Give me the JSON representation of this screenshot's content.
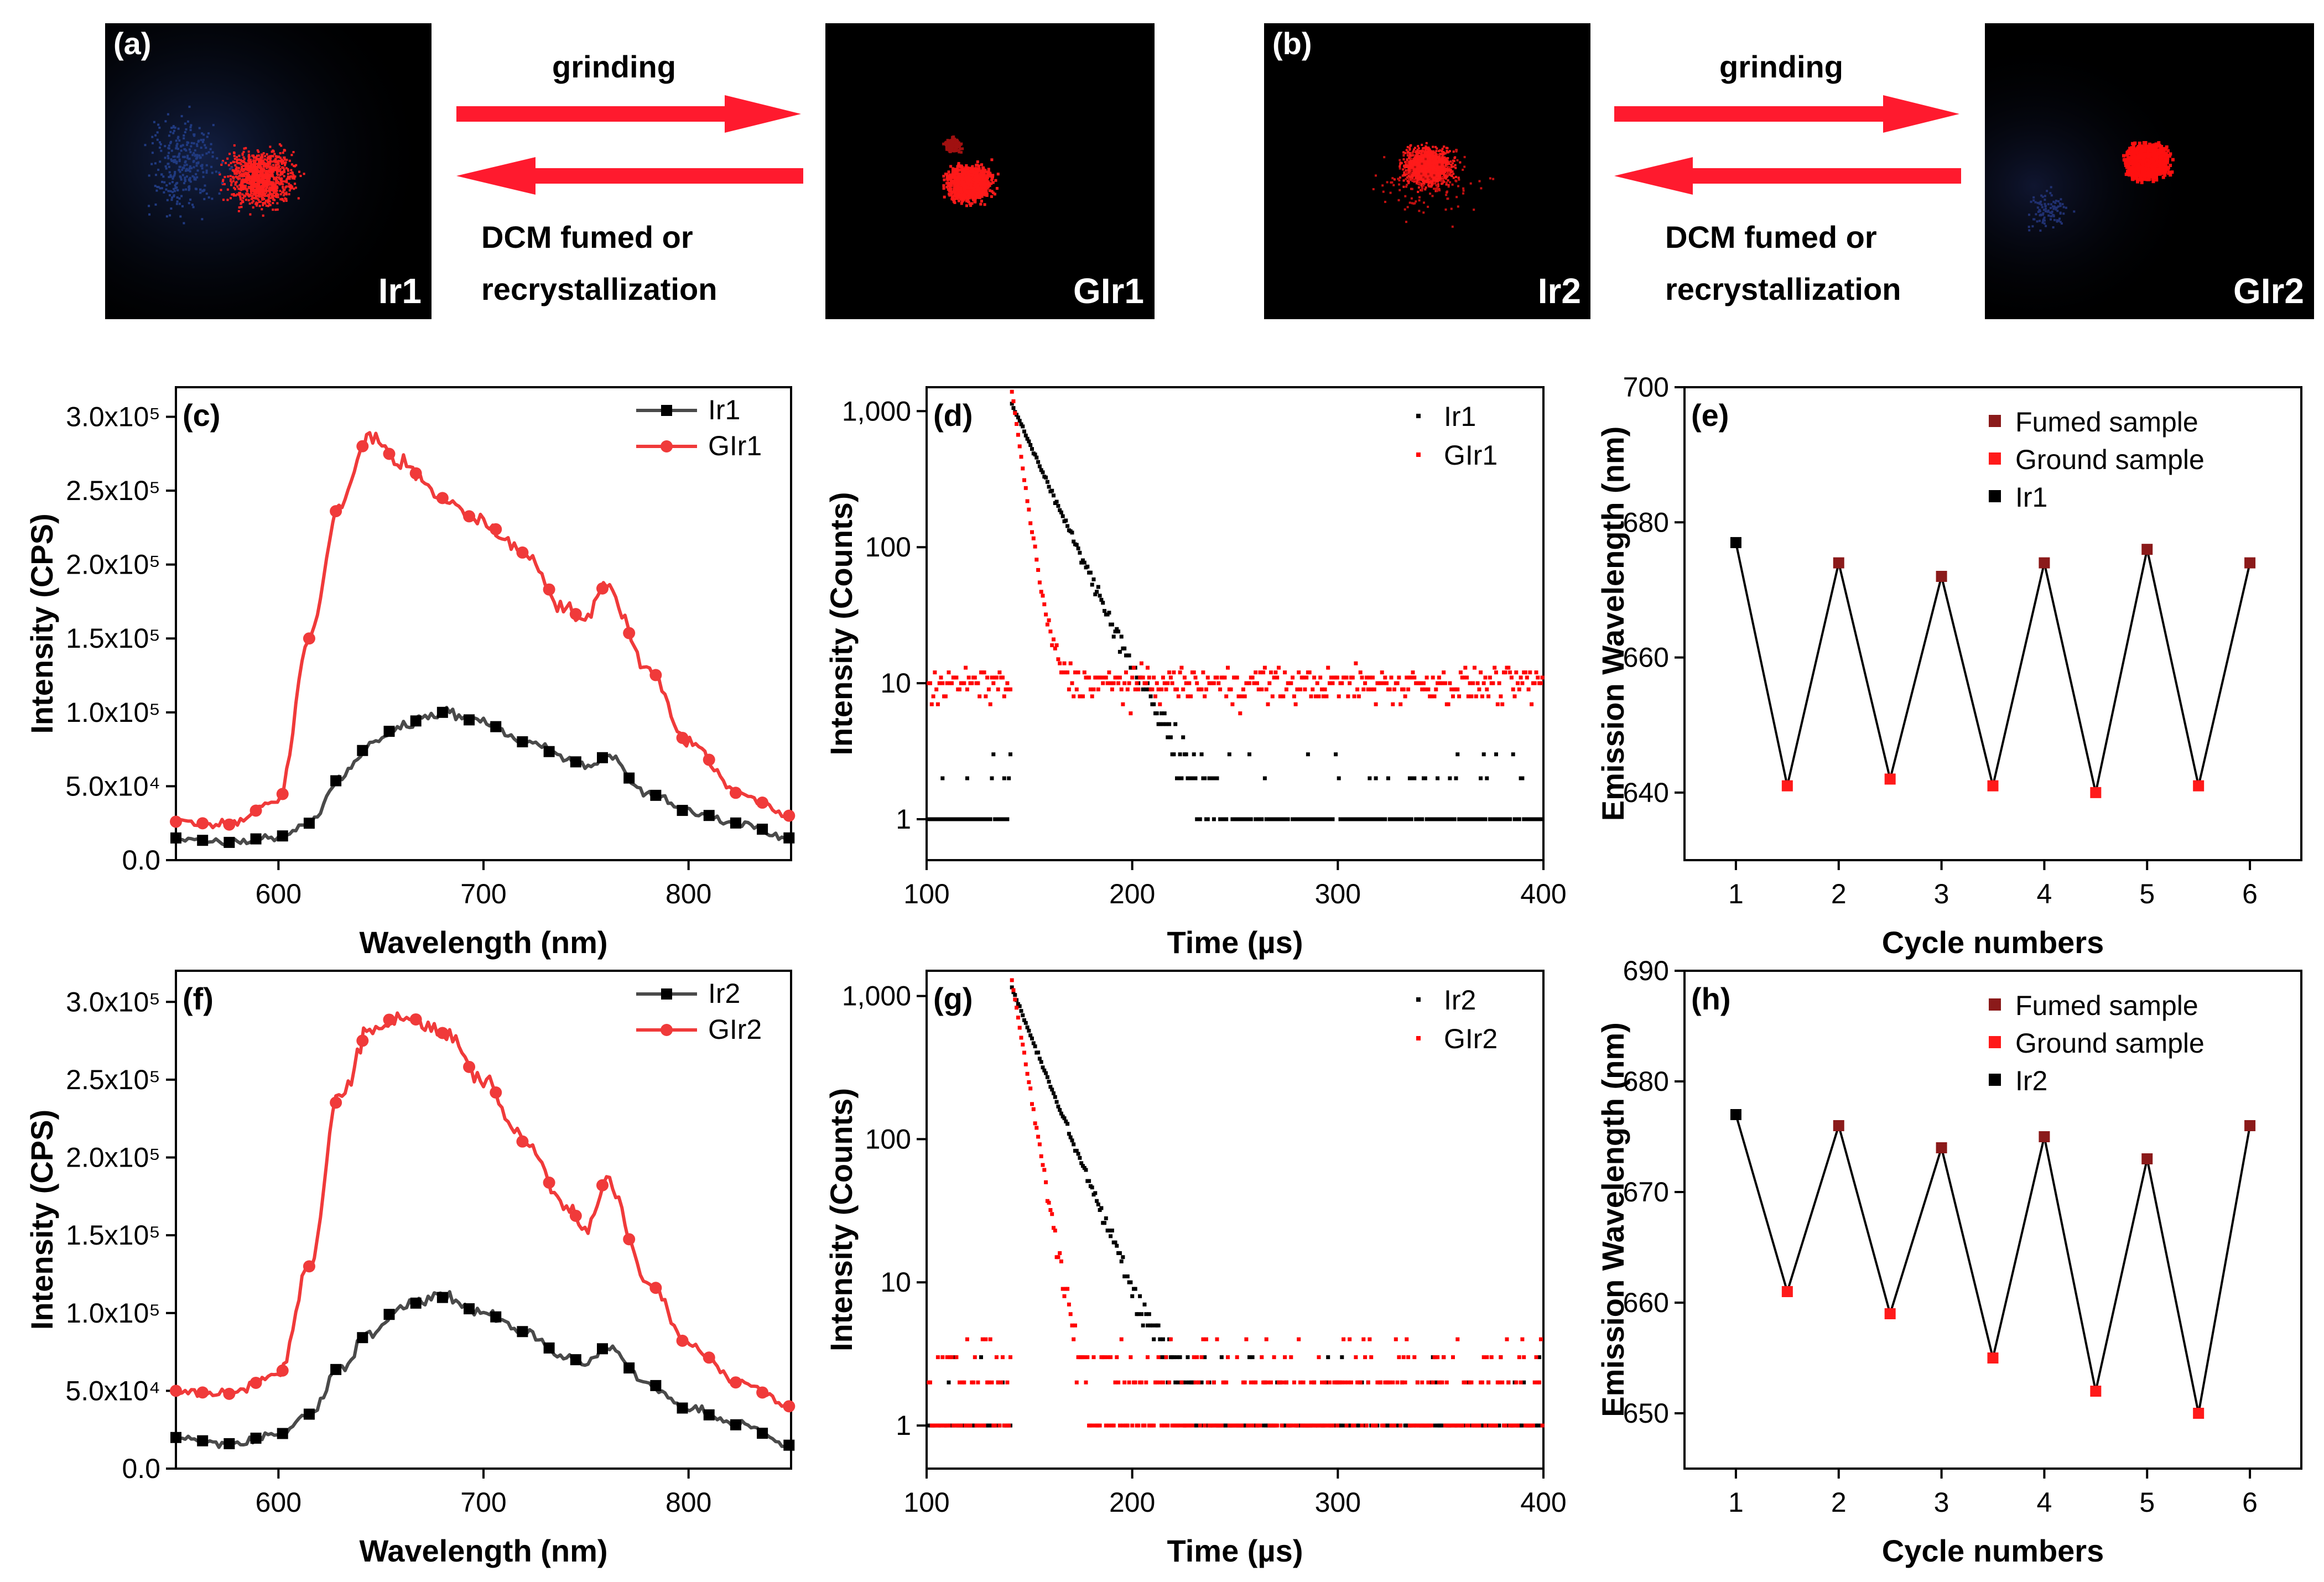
{
  "photos": {
    "a_label": "(a)",
    "b_label": "(b)",
    "a_left": "Ir1",
    "a_right": "GIr1",
    "b_left": "Ir2",
    "b_right": "GIr2",
    "arrow_top": "grinding",
    "arrow_bottom_1": "DCM fumed or",
    "arrow_bottom_2": "recrystallization"
  },
  "colors": {
    "black_series": "#4a4a4a",
    "red_series": "#f03a3a",
    "decay_black": "#000000",
    "decay_red": "#ff0000",
    "fumed": "#8b1a1a",
    "ground": "#ff1a1a",
    "arrow": "#ff1a2e"
  },
  "chart_data": [
    {
      "id": "c",
      "panel_label": "(c)",
      "type": "line",
      "xlabel": "Wavelength (nm)",
      "ylabel": "Intensity (CPS)",
      "xlim": [
        550,
        850
      ],
      "ylim": [
        0,
        320000
      ],
      "xticks": [
        600,
        700,
        800
      ],
      "xtick_labels": [
        "600",
        "700",
        "800"
      ],
      "yticks": [
        0,
        50000,
        100000,
        150000,
        200000,
        250000,
        300000
      ],
      "ytick_labels": [
        "0.0",
        "5.0x10⁴",
        "1.0x10⁵",
        "1.5x10⁵",
        "2.0x10⁵",
        "2.5x10⁵",
        "3.0x10⁵"
      ],
      "x": [
        550,
        575,
        600,
        615,
        630,
        645,
        660,
        680,
        700,
        720,
        740,
        750,
        760,
        780,
        800,
        825,
        850
      ],
      "series": [
        {
          "name": "Ir1",
          "color": "#4a4a4a",
          "marker": "square",
          "values": [
            15000,
            12000,
            16000,
            25000,
            55000,
            78000,
            92000,
            100000,
            93000,
            80000,
            70000,
            63000,
            70000,
            45000,
            33000,
            25000,
            15000
          ]
        },
        {
          "name": "GIr1",
          "color": "#f03a3a",
          "marker": "circle",
          "values": [
            26000,
            24000,
            40000,
            150000,
            240000,
            288000,
            268000,
            245000,
            228000,
            208000,
            170000,
            163000,
            186000,
            130000,
            80000,
            45000,
            30000
          ]
        }
      ],
      "legend": [
        {
          "label": "Ir1"
        },
        {
          "label": "GIr1"
        }
      ]
    },
    {
      "id": "d",
      "panel_label": "(d)",
      "type": "scatter",
      "xlabel": "Time (µs)",
      "ylabel": "Intensity (Counts)",
      "xlim": [
        100,
        400
      ],
      "ylim": [
        0.5,
        1500
      ],
      "yscale": "log",
      "xticks": [
        100,
        200,
        300,
        400
      ],
      "xtick_labels": [
        "100",
        "200",
        "300",
        "400"
      ],
      "yticks": [
        1,
        10,
        100,
        1000
      ],
      "ytick_labels": [
        "1",
        "10",
        "100",
        "1,000"
      ],
      "series": [
        {
          "name": "Ir1",
          "color": "#000000",
          "peak_time": 143,
          "peak": 1000,
          "decay_tau": 13,
          "floor": 1
        },
        {
          "name": "GIr1",
          "color": "#ff0000",
          "peak_time": 143,
          "peak": 950,
          "decay_tau": 4,
          "floor": 10
        }
      ],
      "legend": [
        {
          "label": "Ir1"
        },
        {
          "label": "GIr1"
        }
      ]
    },
    {
      "id": "e",
      "panel_label": "(e)",
      "type": "line",
      "xlabel": "Cycle numbers",
      "ylabel": "Emission Wavelength (nm)",
      "xlim": [
        0.5,
        6.5
      ],
      "ylim": [
        630,
        700
      ],
      "xticks": [
        1,
        2,
        3,
        4,
        5,
        6
      ],
      "xtick_labels": [
        "1",
        "2",
        "3",
        "4",
        "5",
        "6"
      ],
      "yticks": [
        640,
        660,
        680,
        700
      ],
      "ytick_labels": [
        "640",
        "660",
        "680",
        "700"
      ],
      "x": [
        1,
        1.5,
        2,
        2.5,
        3,
        3.5,
        4,
        4.5,
        5,
        5.5,
        6
      ],
      "values": [
        677,
        641,
        674,
        642,
        672,
        641,
        674,
        640,
        676,
        641,
        674
      ],
      "point_types": [
        "initial",
        "ground",
        "fumed",
        "ground",
        "fumed",
        "ground",
        "fumed",
        "ground",
        "fumed",
        "ground",
        "fumed"
      ],
      "legend": [
        {
          "label": "Fumed sample"
        },
        {
          "label": "Ground sample"
        },
        {
          "label": "Ir1"
        }
      ]
    },
    {
      "id": "f",
      "panel_label": "(f)",
      "type": "line",
      "xlabel": "Wavelength (nm)",
      "ylabel": "Intensity (CPS)",
      "xlim": [
        550,
        850
      ],
      "ylim": [
        0,
        320000
      ],
      "xticks": [
        600,
        700,
        800
      ],
      "xtick_labels": [
        "600",
        "700",
        "800"
      ],
      "yticks": [
        0,
        50000,
        100000,
        150000,
        200000,
        250000,
        300000
      ],
      "ytick_labels": [
        "0.0",
        "5.0x10⁴",
        "1.0x10⁵",
        "1.5x10⁵",
        "2.0x10⁵",
        "2.5x10⁵",
        "3.0x10⁵"
      ],
      "x": [
        550,
        575,
        600,
        615,
        630,
        645,
        660,
        680,
        700,
        720,
        740,
        750,
        760,
        780,
        800,
        825,
        850
      ],
      "series": [
        {
          "name": "Ir2",
          "color": "#4a4a4a",
          "marker": "square",
          "values": [
            20000,
            16000,
            22000,
            35000,
            65000,
            88000,
            105000,
            110000,
            100000,
            88000,
            72000,
            68000,
            78000,
            55000,
            38000,
            28000,
            15000
          ]
        },
        {
          "name": "GIr2",
          "color": "#f03a3a",
          "marker": "circle",
          "values": [
            50000,
            48000,
            60000,
            130000,
            240000,
            282000,
            292000,
            280000,
            250000,
            210000,
            170000,
            155000,
            185000,
            120000,
            80000,
            55000,
            40000
          ]
        }
      ],
      "legend": [
        {
          "label": "Ir2"
        },
        {
          "label": "GIr2"
        }
      ]
    },
    {
      "id": "g",
      "panel_label": "(g)",
      "type": "scatter",
      "xlabel": "Time (µs)",
      "ylabel": "Intensity (Counts)",
      "xlim": [
        100,
        400
      ],
      "ylim": [
        0.5,
        1500
      ],
      "yscale": "log",
      "xticks": [
        100,
        200,
        300,
        400
      ],
      "xtick_labels": [
        "100",
        "200",
        "300",
        "400"
      ],
      "yticks": [
        1,
        10,
        100,
        1000
      ],
      "ytick_labels": [
        "1",
        "10",
        "100",
        "1,000"
      ],
      "series": [
        {
          "name": "Ir2",
          "color": "#000000",
          "peak_time": 143,
          "peak": 1000,
          "decay_tau": 12,
          "floor": 1
        },
        {
          "name": "GIr2",
          "color": "#ff0000",
          "peak_time": 143,
          "peak": 950,
          "decay_tau": 5,
          "floor": 2
        }
      ],
      "legend": [
        {
          "label": "Ir2"
        },
        {
          "label": "GIr2"
        }
      ]
    },
    {
      "id": "h",
      "panel_label": "(h)",
      "type": "line",
      "xlabel": "Cycle numbers",
      "ylabel": "Emission Wavelength (nm)",
      "xlim": [
        0.5,
        6.5
      ],
      "ylim": [
        645,
        690
      ],
      "xticks": [
        1,
        2,
        3,
        4,
        5,
        6
      ],
      "xtick_labels": [
        "1",
        "2",
        "3",
        "4",
        "5",
        "6"
      ],
      "yticks": [
        650,
        660,
        670,
        680,
        690
      ],
      "ytick_labels": [
        "650",
        "660",
        "670",
        "680",
        "690"
      ],
      "x": [
        1,
        1.5,
        2,
        2.5,
        3,
        3.5,
        4,
        4.5,
        5,
        5.5,
        6
      ],
      "values": [
        677,
        661,
        676,
        659,
        674,
        655,
        675,
        652,
        673,
        650,
        676
      ],
      "point_types": [
        "initial",
        "ground",
        "fumed",
        "ground",
        "fumed",
        "ground",
        "fumed",
        "ground",
        "fumed",
        "ground",
        "fumed"
      ],
      "legend": [
        {
          "label": "Fumed sample"
        },
        {
          "label": "Ground sample"
        },
        {
          "label": "Ir2"
        }
      ]
    }
  ]
}
